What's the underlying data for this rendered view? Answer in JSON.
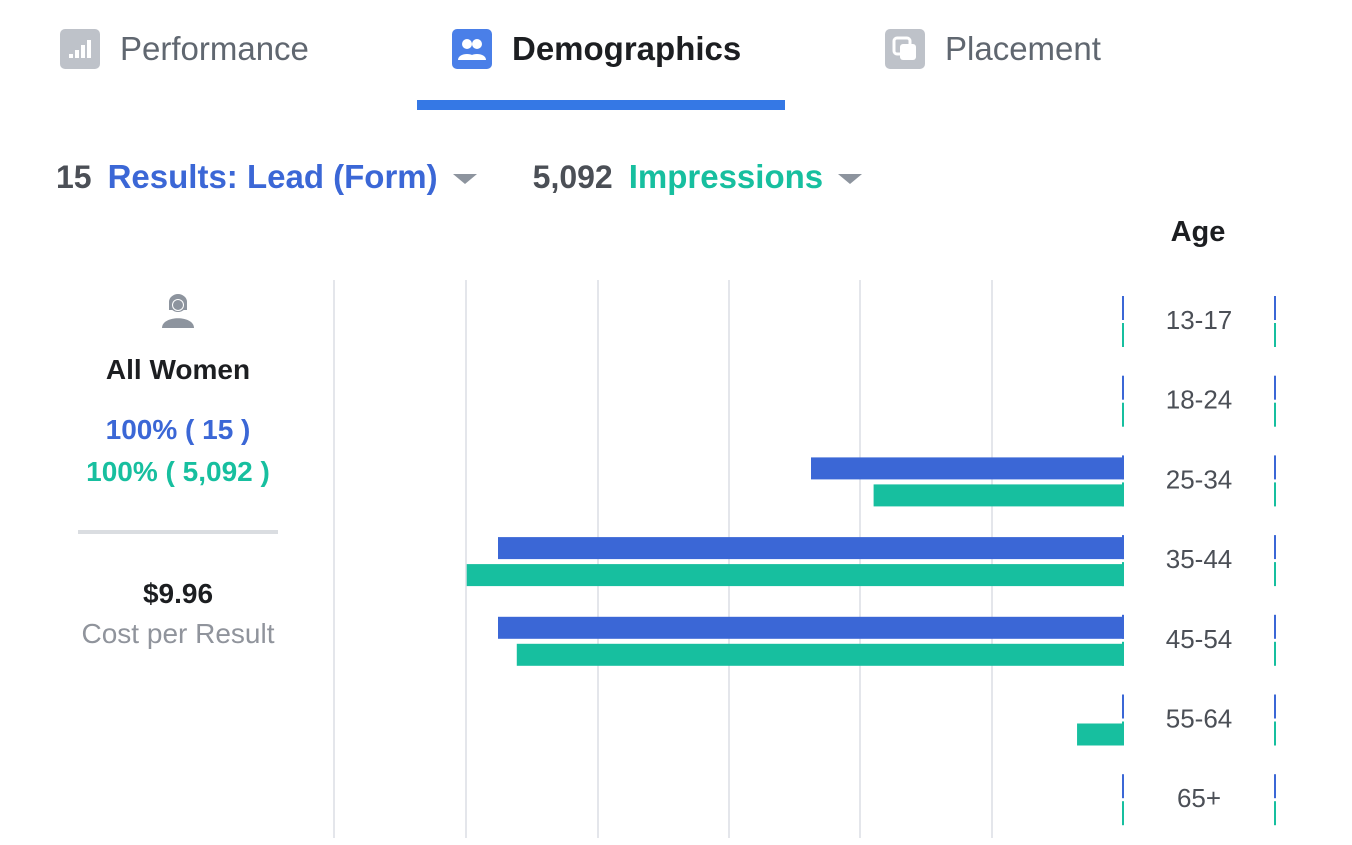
{
  "tabs": [
    {
      "label": "Performance",
      "icon": "bar-chart-icon",
      "active": false
    },
    {
      "label": "Demographics",
      "icon": "people-icon",
      "active": true
    },
    {
      "label": "Placement",
      "icon": "placement-icon",
      "active": false
    }
  ],
  "metrics": {
    "results": {
      "count": "15",
      "label": "Results: Lead (Form)"
    },
    "impressions": {
      "count": "5,092",
      "label": "Impressions"
    }
  },
  "summary": {
    "segment": "All Women",
    "results_pct": "100% ( 15 )",
    "impressions_pct": "100% ( 5,092 )",
    "cost_value": "$9.96",
    "cost_label": "Cost per Result"
  },
  "colors": {
    "results": "#3b67d6",
    "impressions": "#17bf9f",
    "accent": "#3578e5",
    "grid": "#e4e6eb"
  },
  "chart_data": {
    "type": "bar",
    "orientation": "horizontal",
    "title": "Age",
    "categories": [
      "13-17",
      "18-24",
      "25-34",
      "35-44",
      "45-54",
      "55-64",
      "65+"
    ],
    "series": [
      {
        "name": "Results: Lead (Form)",
        "values": [
          0,
          0,
          0.5,
          1.0,
          1.0,
          0,
          0
        ]
      },
      {
        "name": "Impressions",
        "values": [
          0,
          0,
          0.4,
          1.05,
          0.97,
          0.075,
          0
        ]
      }
    ],
    "grid": true
  }
}
